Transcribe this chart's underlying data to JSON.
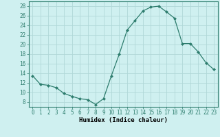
{
  "x": [
    0,
    1,
    2,
    3,
    4,
    5,
    6,
    7,
    8,
    9,
    10,
    11,
    12,
    13,
    14,
    15,
    16,
    17,
    18,
    19,
    20,
    21,
    22,
    23
  ],
  "y": [
    13.5,
    11.7,
    11.5,
    11.0,
    9.8,
    9.2,
    8.7,
    8.5,
    7.5,
    8.7,
    13.5,
    18.0,
    23.0,
    25.0,
    27.0,
    27.8,
    28.0,
    26.8,
    25.5,
    20.2,
    20.2,
    18.5,
    16.2,
    14.8
  ],
  "line_color": "#2e7d6e",
  "marker": "D",
  "marker_size": 2.0,
  "bg_color": "#cff0f0",
  "grid_color": "#b0d8d8",
  "xlabel": "Humidex (Indice chaleur)",
  "xlim": [
    -0.5,
    23.5
  ],
  "ylim": [
    7,
    29
  ],
  "yticks": [
    8,
    10,
    12,
    14,
    16,
    18,
    20,
    22,
    24,
    26,
    28
  ],
  "xticks": [
    0,
    1,
    2,
    3,
    4,
    5,
    6,
    7,
    8,
    9,
    10,
    11,
    12,
    13,
    14,
    15,
    16,
    17,
    18,
    19,
    20,
    21,
    22,
    23
  ],
  "tick_fontsize": 5.5,
  "xlabel_fontsize": 6.5,
  "spine_color": "#2e7d6e"
}
